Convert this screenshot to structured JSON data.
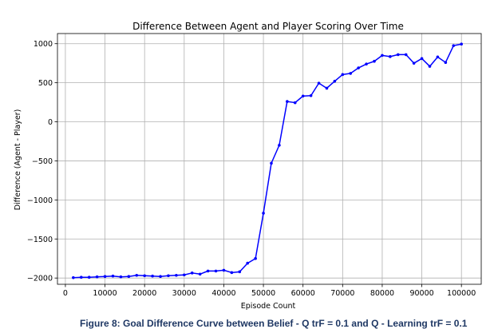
{
  "caption": "Figure 8: Goal Difference Curve between Belief - Q trF = 0.1 and Q - Learning trF = 0.1",
  "chart_data": {
    "type": "line",
    "title": "Difference Between Agent and Player Scoring Over Time",
    "xlabel": "Episode Count",
    "ylabel": "Difference (Agent - Player)",
    "xlim": [
      -2000,
      105000
    ],
    "ylim": [
      -2080,
      1130
    ],
    "xticks": [
      0,
      10000,
      20000,
      30000,
      40000,
      50000,
      60000,
      70000,
      80000,
      90000,
      100000
    ],
    "xtick_labels": [
      "0",
      "10000",
      "20000",
      "30000",
      "40000",
      "50000",
      "60000",
      "70000",
      "80000",
      "90000",
      "100000"
    ],
    "yticks": [
      -2000,
      -1500,
      -1000,
      -500,
      0,
      500,
      1000
    ],
    "ytick_labels": [
      "−2000",
      "−1500",
      "−1000",
      "−500",
      "0",
      "500",
      "1000"
    ],
    "grid": true,
    "series_color": "#0000ff",
    "marker": "circle",
    "x": [
      2000,
      4000,
      6000,
      8000,
      10000,
      12000,
      14000,
      16000,
      18000,
      20000,
      22000,
      24000,
      26000,
      28000,
      30000,
      32000,
      34000,
      36000,
      38000,
      40000,
      42000,
      44000,
      46000,
      48000,
      50000,
      52000,
      54000,
      56000,
      58000,
      60000,
      62000,
      64000,
      66000,
      68000,
      70000,
      72000,
      74000,
      76000,
      78000,
      80000,
      82000,
      84000,
      86000,
      88000,
      90000,
      92000,
      94000,
      96000,
      98000,
      100000
    ],
    "y": [
      -1995,
      -1990,
      -1990,
      -1985,
      -1980,
      -1975,
      -1985,
      -1980,
      -1965,
      -1970,
      -1975,
      -1980,
      -1970,
      -1965,
      -1960,
      -1935,
      -1950,
      -1910,
      -1910,
      -1900,
      -1930,
      -1920,
      -1810,
      -1750,
      -1170,
      -530,
      -300,
      260,
      245,
      330,
      335,
      495,
      430,
      520,
      605,
      620,
      690,
      740,
      775,
      850,
      835,
      860,
      860,
      750,
      810,
      710,
      830,
      760,
      975,
      995
    ]
  }
}
